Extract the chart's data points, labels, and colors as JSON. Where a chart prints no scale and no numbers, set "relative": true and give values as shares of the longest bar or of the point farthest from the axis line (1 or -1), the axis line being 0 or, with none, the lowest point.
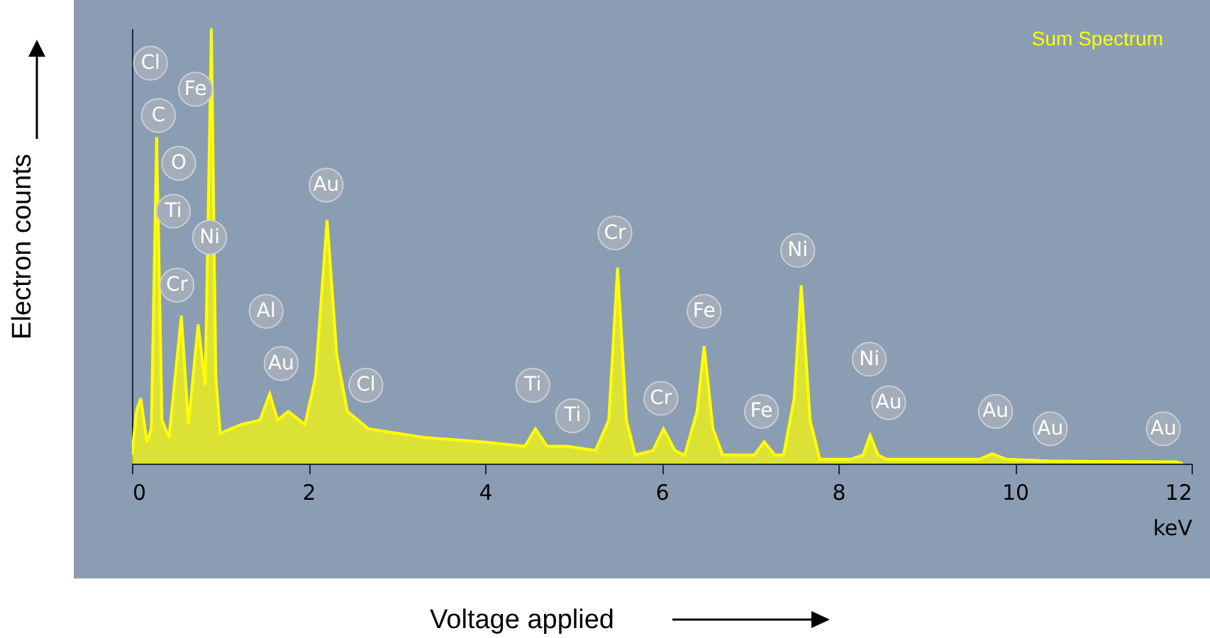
{
  "chart_data": {
    "type": "area",
    "relative": true,
    "xlabel": "keV",
    "ylabel": "Electron counts",
    "xlim": [
      0,
      12
    ],
    "xticks": [
      0,
      2,
      4,
      6,
      8,
      10,
      12
    ],
    "x": [
      0,
      0.05,
      0.1,
      0.17,
      0.22,
      0.28,
      0.34,
      0.42,
      0.49,
      0.56,
      0.64,
      0.75,
      0.83,
      0.9,
      0.95,
      1.0,
      1.24,
      1.45,
      1.56,
      1.65,
      1.77,
      1.96,
      2.08,
      2.21,
      2.32,
      2.44,
      2.68,
      3.32,
      3.96,
      4.45,
      4.57,
      4.7,
      4.93,
      5.25,
      5.4,
      5.5,
      5.6,
      5.7,
      5.9,
      6.02,
      6.15,
      6.26,
      6.4,
      6.48,
      6.58,
      6.69,
      7.05,
      7.16,
      7.28,
      7.38,
      7.5,
      7.58,
      7.68,
      7.79,
      8.14,
      8.28,
      8.36,
      8.45,
      8.54,
      9.6,
      9.74,
      9.9,
      10.38,
      11.83,
      11.9
    ],
    "series": [
      {
        "color": "#ffff00",
        "values": [
          0.02,
          0.12,
          0.15,
          0.05,
          0.08,
          0.75,
          0.1,
          0.06,
          0.2,
          0.34,
          0.09,
          0.32,
          0.18,
          1.0,
          0.2,
          0.07,
          0.09,
          0.1,
          0.16,
          0.1,
          0.12,
          0.09,
          0.2,
          0.56,
          0.25,
          0.12,
          0.08,
          0.06,
          0.05,
          0.04,
          0.08,
          0.04,
          0.04,
          0.03,
          0.1,
          0.45,
          0.1,
          0.02,
          0.03,
          0.08,
          0.03,
          0.02,
          0.12,
          0.27,
          0.08,
          0.02,
          0.02,
          0.05,
          0.02,
          0.02,
          0.15,
          0.41,
          0.1,
          0.01,
          0.01,
          0.02,
          0.065,
          0.02,
          0.01,
          0.01,
          0.023,
          0.01,
          0.006,
          0.004,
          0.0
        ]
      }
    ],
    "annotations": [
      {
        "text": "Cl",
        "x": 0.21,
        "y": 0.92
      },
      {
        "text": "Fe",
        "x": 0.72,
        "y": 0.86
      },
      {
        "text": "C",
        "x": 0.3,
        "y": 0.8
      },
      {
        "text": "O",
        "x": 0.53,
        "y": 0.69
      },
      {
        "text": "Ti",
        "x": 0.47,
        "y": 0.58
      },
      {
        "text": "Ni",
        "x": 0.88,
        "y": 0.52
      },
      {
        "text": "Cr",
        "x": 0.51,
        "y": 0.41
      },
      {
        "text": "Au",
        "x": 2.2,
        "y": 0.64
      },
      {
        "text": "Al",
        "x": 1.52,
        "y": 0.35
      },
      {
        "text": "Au",
        "x": 1.69,
        "y": 0.23
      },
      {
        "text": "Cl",
        "x": 2.65,
        "y": 0.18
      },
      {
        "text": "Ti",
        "x": 4.54,
        "y": 0.18
      },
      {
        "text": "Ti",
        "x": 4.99,
        "y": 0.11
      },
      {
        "text": "Cr",
        "x": 5.47,
        "y": 0.53
      },
      {
        "text": "Cr",
        "x": 5.99,
        "y": 0.15
      },
      {
        "text": "Fe",
        "x": 6.48,
        "y": 0.35
      },
      {
        "text": "Fe",
        "x": 7.13,
        "y": 0.12
      },
      {
        "text": "Ni",
        "x": 7.54,
        "y": 0.49
      },
      {
        "text": "Ni",
        "x": 8.35,
        "y": 0.24
      },
      {
        "text": "Au",
        "x": 8.57,
        "y": 0.14
      },
      {
        "text": "Au",
        "x": 9.78,
        "y": 0.12
      },
      {
        "text": "Au",
        "x": 10.4,
        "y": 0.08
      },
      {
        "text": "Au",
        "x": 11.68,
        "y": 0.08
      },
      "Sum Spectrum",
      "Voltage applied"
    ]
  }
}
